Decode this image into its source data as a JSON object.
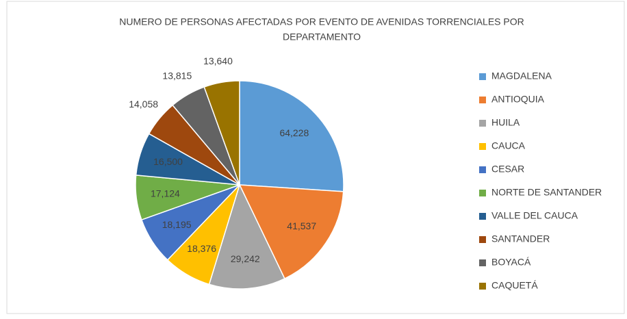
{
  "chart_data": {
    "type": "pie",
    "title": "NUMERO DE PERSONAS AFECTADAS POR EVENTO DE AVENIDAS TORRENCIALES POR",
    "subtitle": "DEPARTAMENTO",
    "categories": [
      "MAGDALENA",
      "ANTIOQUIA",
      "HUILA",
      "CAUCA",
      "CESAR",
      "NORTE DE SANTANDER",
      "VALLE DEL CAUCA",
      "SANTANDER",
      "BOYACÁ",
      "CAQUETÁ"
    ],
    "values": [
      64228,
      41537,
      29242,
      18376,
      18195,
      17124,
      16500,
      14058,
      13815,
      13640
    ],
    "value_labels": [
      "64,228",
      "41,537",
      "29,242",
      "18,376",
      "18,195",
      "17,124",
      "16,500",
      "14,058",
      "13,815",
      "13,640"
    ],
    "colors": [
      "#5b9bd5",
      "#ed7d31",
      "#a5a5a5",
      "#ffc000",
      "#4472c4",
      "#70ad47",
      "#255e91",
      "#9e480e",
      "#636363",
      "#997300"
    ],
    "legend": "right"
  }
}
